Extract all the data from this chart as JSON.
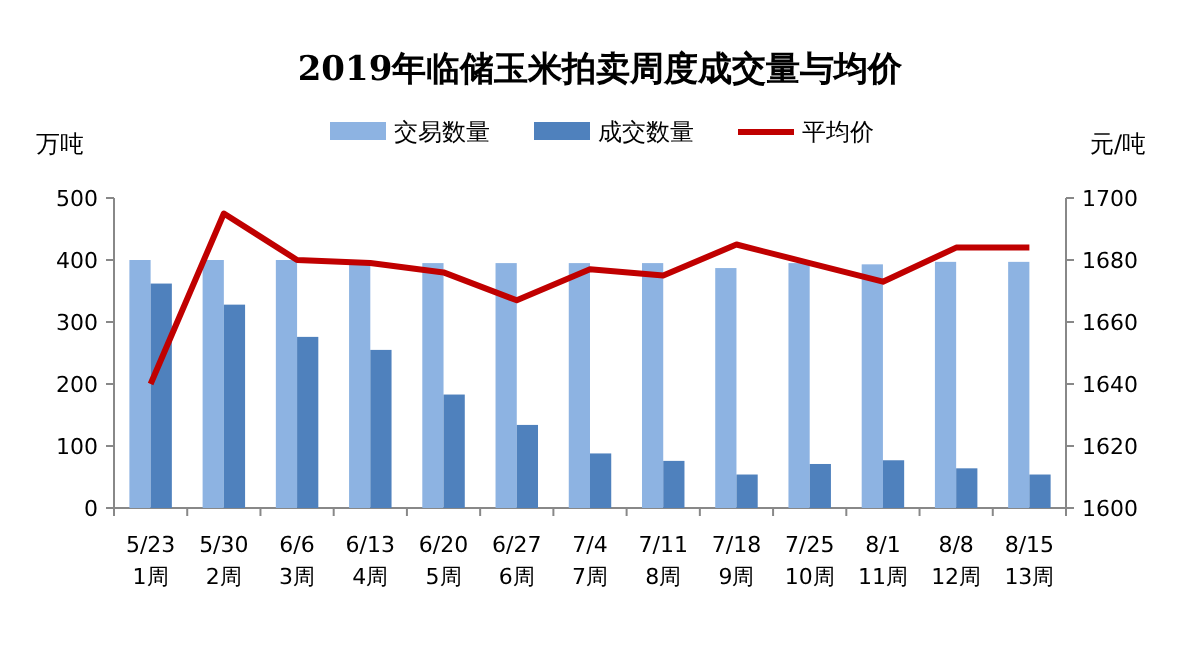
{
  "chart_data": {
    "type": "bar",
    "title": "2019年临储玉米拍卖周度成交量与均价",
    "ylabel": "万吨",
    "y2label": "元/吨",
    "categories": [
      "5/23\n1周",
      "5/30\n2周",
      "6/6\n3周",
      "6/13\n4周",
      "6/20\n5周",
      "6/27\n6周",
      "7/4\n7周",
      "7/11\n8周",
      "7/18\n9周",
      "7/25\n10周",
      "8/1\n11周",
      "8/8\n12周",
      "8/15\n13周"
    ],
    "series": [
      {
        "name": "交易数量",
        "color": "#8db3e2",
        "values": [
          400,
          400,
          400,
          395,
          395,
          395,
          395,
          395,
          387,
          395,
          393,
          397,
          397
        ]
      },
      {
        "name": "成交数量",
        "color": "#4f81bd",
        "values": [
          362,
          328,
          276,
          255,
          183,
          134,
          88,
          76,
          54,
          71,
          77,
          64,
          54
        ]
      },
      {
        "name": "平均价",
        "type": "line",
        "axis": "y2",
        "color": "#c00000",
        "values": [
          1640,
          1695,
          1680,
          1679,
          1676,
          1667,
          1677,
          1675,
          1685,
          1679,
          1673,
          1684,
          1684
        ]
      }
    ],
    "ylim": [
      0,
      500
    ],
    "yticks": [
      0,
      100,
      200,
      300,
      400,
      500
    ],
    "y2lim": [
      1600,
      1700
    ],
    "y2ticks": [
      1600,
      1620,
      1640,
      1660,
      1680,
      1700
    ],
    "grid": false,
    "legend": "top"
  }
}
